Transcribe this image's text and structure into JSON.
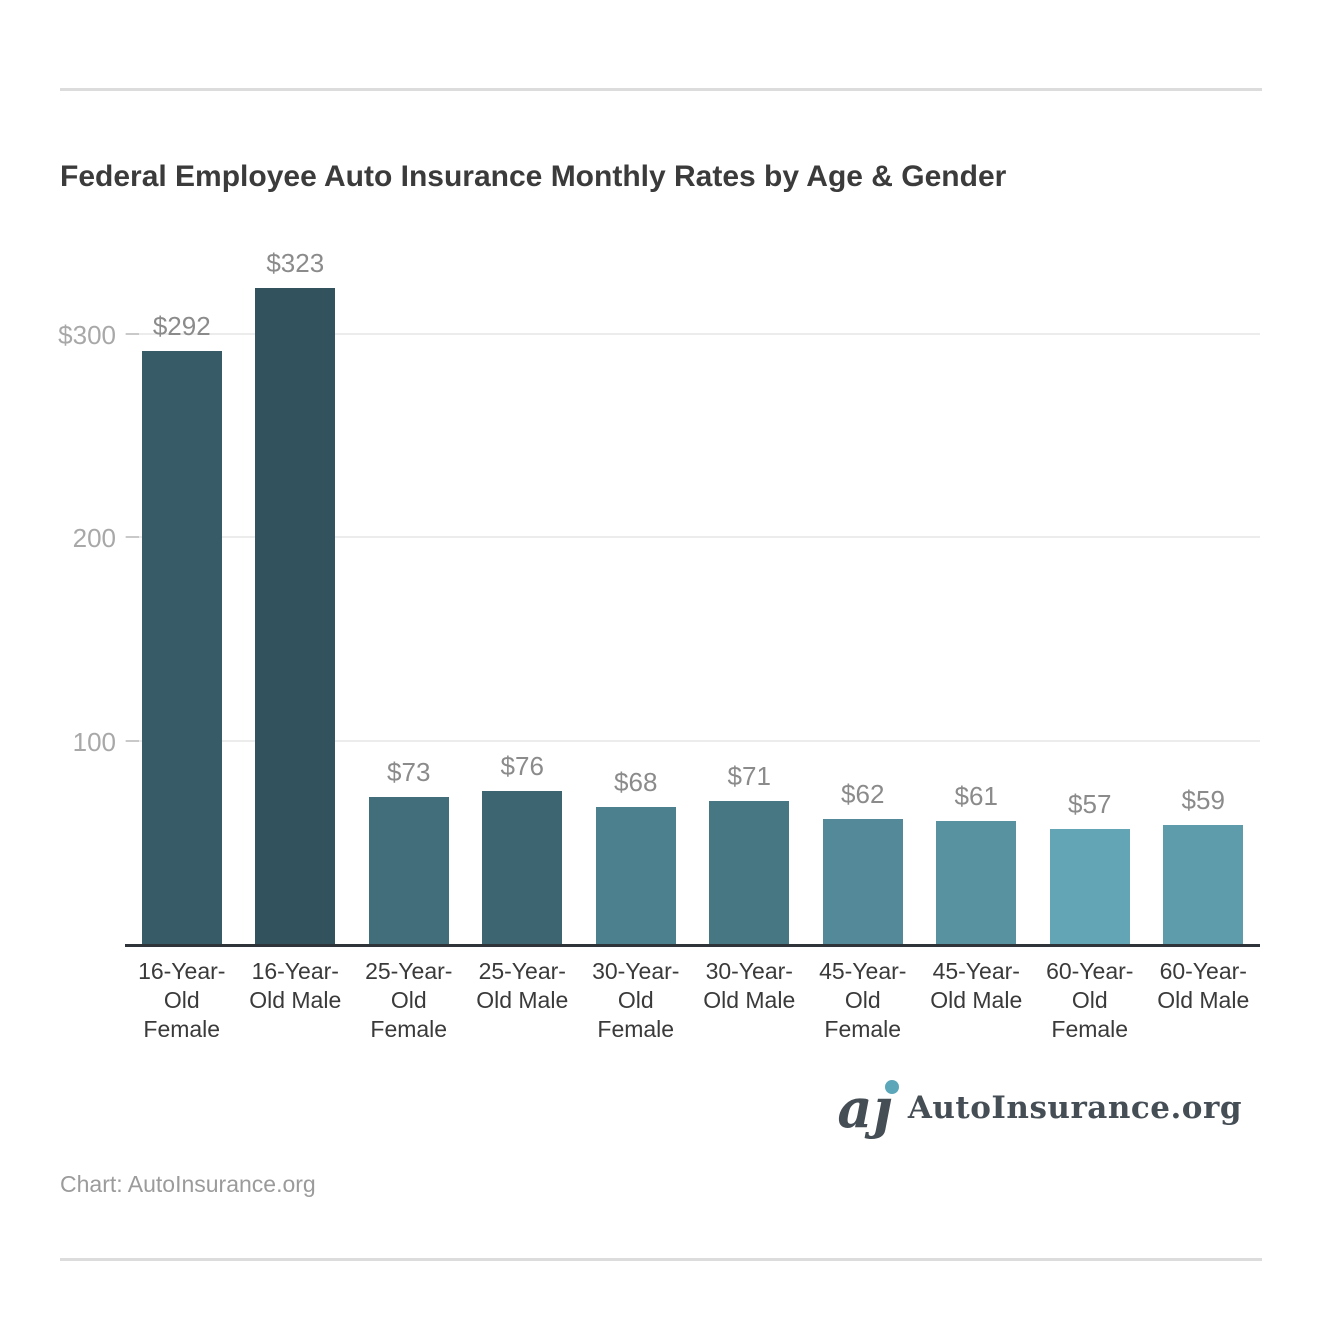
{
  "header": {
    "title": "Federal Employee Auto Insurance Monthly Rates by Age & Gender"
  },
  "chart_data": {
    "type": "bar",
    "title": "Federal Employee Auto Insurance Monthly Rates by Age & Gender",
    "xlabel": "",
    "ylabel": "",
    "categories": [
      "16-Year-Old Female",
      "16-Year-Old Male",
      "25-Year-Old Female",
      "25-Year-Old Male",
      "30-Year-Old Female",
      "30-Year-Old Male",
      "45-Year-Old Female",
      "45-Year-Old Male",
      "60-Year-Old Female",
      "60-Year-Old Male"
    ],
    "values": [
      292,
      323,
      73,
      76,
      68,
      71,
      62,
      61,
      57,
      59
    ],
    "value_labels": [
      "$292",
      "$323",
      "$73",
      "$76",
      "$68",
      "$71",
      "$62",
      "$61",
      "$57",
      "$59"
    ],
    "bar_colors": [
      "#375b67",
      "#32525d",
      "#426d7a",
      "#3d6471",
      "#4d808e",
      "#487784",
      "#538998",
      "#5892a1",
      "#63a5b5",
      "#5e9bab"
    ],
    "yticks": [
      {
        "label": "$300",
        "value": 300
      },
      {
        "label": "200",
        "value": 200
      },
      {
        "label": "100",
        "value": 100
      }
    ],
    "ylim": [
      0,
      348
    ],
    "grid": "horizontal",
    "legend": "none"
  },
  "footer": {
    "credit": "Chart: AutoInsurance.org",
    "logo_mark": "aȷ",
    "logo_text": "AutoInsurance.org"
  },
  "colors": {
    "color_scale_dark": "#32525d",
    "color_scale_light": "#63a5b5",
    "title_text": "#3b3b3b",
    "value_label_text": "#8b8b8b",
    "axis_tick_text": "#a8a8a8",
    "category_label_text": "#3a3a3a",
    "gridline": "#ececec",
    "baseline": "#2e343a",
    "divider_rule": "#dcdcdc",
    "logo": "#454d55",
    "logo_dot": "#5ba7b9"
  }
}
